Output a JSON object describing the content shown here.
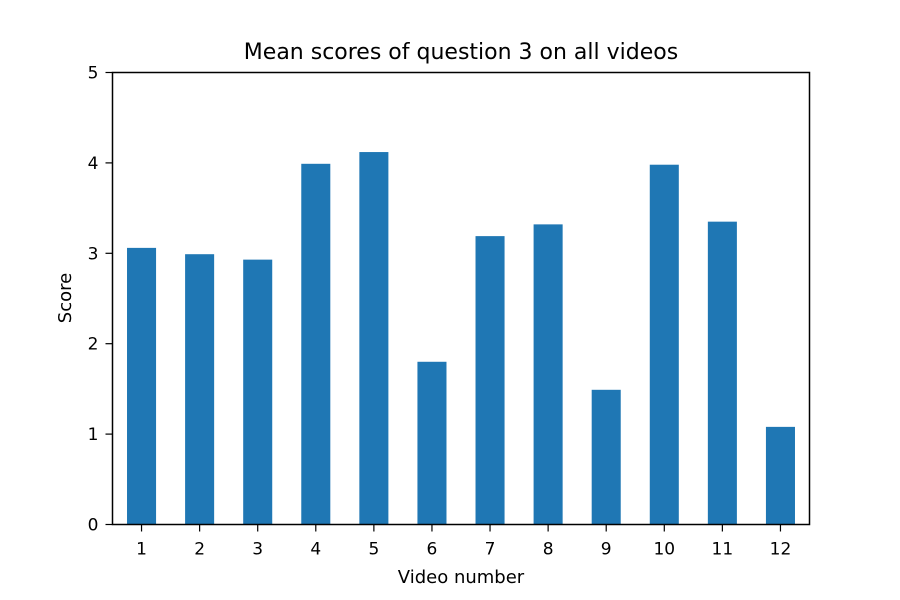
{
  "chart_data": {
    "type": "bar",
    "title": "Mean scores of question 3 on all videos",
    "xlabel": "Video number",
    "ylabel": "Score",
    "categories": [
      "1",
      "2",
      "3",
      "4",
      "5",
      "6",
      "7",
      "8",
      "9",
      "10",
      "11",
      "12"
    ],
    "values": [
      3.06,
      2.99,
      2.93,
      3.99,
      4.12,
      1.8,
      3.19,
      3.32,
      1.49,
      3.98,
      3.35,
      1.08
    ],
    "ylim": [
      0,
      5
    ],
    "yticks": [
      0,
      1,
      2,
      3,
      4,
      5
    ],
    "grid": false,
    "bar_color": "#1f77b4"
  }
}
